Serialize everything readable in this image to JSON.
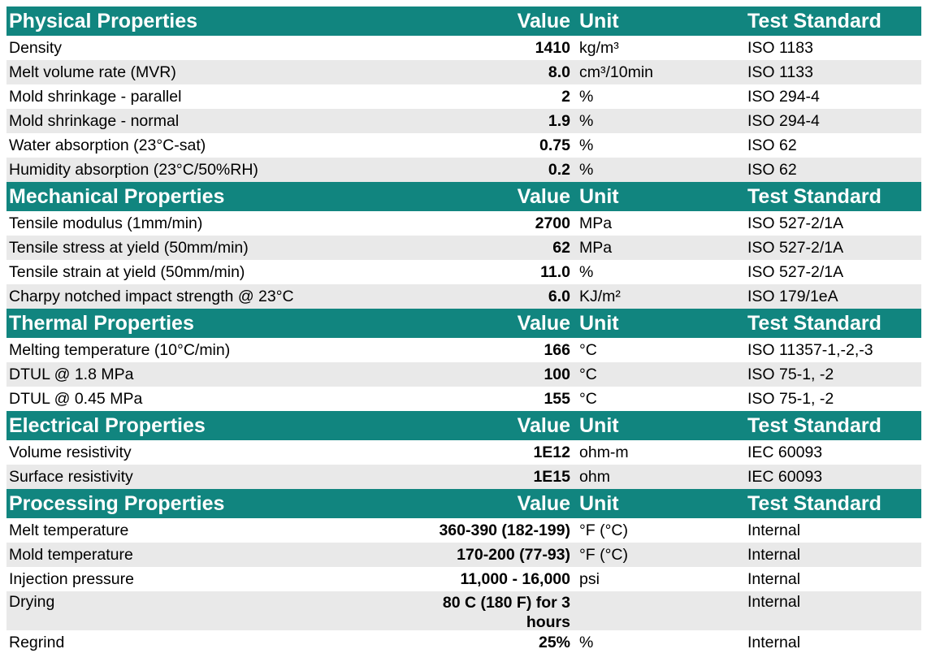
{
  "header_labels": {
    "value": "Value",
    "unit": "Unit",
    "standard": "Test Standard"
  },
  "sections": [
    {
      "title": "Physical Properties",
      "rows": [
        {
          "name": "Density",
          "value": "1410",
          "unit": "kg/m³",
          "standard": "ISO 1183"
        },
        {
          "name": "Melt volume rate (MVR)",
          "value": "8.0",
          "unit": "cm³/10min",
          "standard": "ISO 1133"
        },
        {
          "name": "Mold shrinkage - parallel",
          "value": "2",
          "unit": "%",
          "standard": "ISO 294-4"
        },
        {
          "name": "Mold shrinkage - normal",
          "value": "1.9",
          "unit": "%",
          "standard": "ISO 294-4"
        },
        {
          "name": "Water absorption (23°C-sat)",
          "value": "0.75",
          "unit": "%",
          "standard": "ISO 62"
        },
        {
          "name": "Humidity absorption (23°C/50%RH)",
          "value": "0.2",
          "unit": "%",
          "standard": "ISO 62"
        }
      ]
    },
    {
      "title": "Mechanical Properties",
      "rows": [
        {
          "name": "Tensile modulus (1mm/min)",
          "value": "2700",
          "unit": "MPa",
          "standard": "ISO 527-2/1A"
        },
        {
          "name": "Tensile stress at yield (50mm/min)",
          "value": "62",
          "unit": "MPa",
          "standard": "ISO 527-2/1A"
        },
        {
          "name": "Tensile strain at yield (50mm/min)",
          "value": "11.0",
          "unit": "%",
          "standard": "ISO 527-2/1A"
        },
        {
          "name": "Charpy notched impact strength @ 23°C",
          "value": "6.0",
          "unit": "KJ/m²",
          "standard": "ISO 179/1eA"
        }
      ]
    },
    {
      "title": "Thermal Properties",
      "rows": [
        {
          "name": "Melting temperature (10°C/min)",
          "value": "166",
          "unit": "°C",
          "standard": "ISO 11357-1,-2,-3"
        },
        {
          "name": "DTUL @ 1.8 MPa",
          "value": "100",
          "unit": "°C",
          "standard": "ISO 75-1, -2"
        },
        {
          "name": "DTUL @ 0.45 MPa",
          "value": "155",
          "unit": "°C",
          "standard": "ISO 75-1, -2"
        }
      ]
    },
    {
      "title": "Electrical Properties",
      "rows": [
        {
          "name": "Volume resistivity",
          "value": "1E12",
          "unit": "ohm-m",
          "standard": "IEC 60093"
        },
        {
          "name": "Surface resistivity",
          "value": "1E15",
          "unit": "ohm",
          "standard": "IEC 60093"
        }
      ]
    },
    {
      "title": "Processing Properties",
      "rows": [
        {
          "name": "Melt temperature",
          "value": "360-390 (182-199)",
          "unit": "°F (°C)",
          "standard": "Internal"
        },
        {
          "name": "Mold temperature",
          "value": "170-200 (77-93)",
          "unit": "°F (°C)",
          "standard": "Internal"
        },
        {
          "name": "Injection pressure",
          "value": "11,000 - 16,000",
          "unit": "psi",
          "standard": "Internal"
        },
        {
          "name": "Drying",
          "value": "80 C (180 F) for 3 hours",
          "unit": "",
          "standard": "Internal"
        },
        {
          "name": "Regrind",
          "value": "25%",
          "unit": "%",
          "standard": "Internal"
        }
      ]
    }
  ]
}
